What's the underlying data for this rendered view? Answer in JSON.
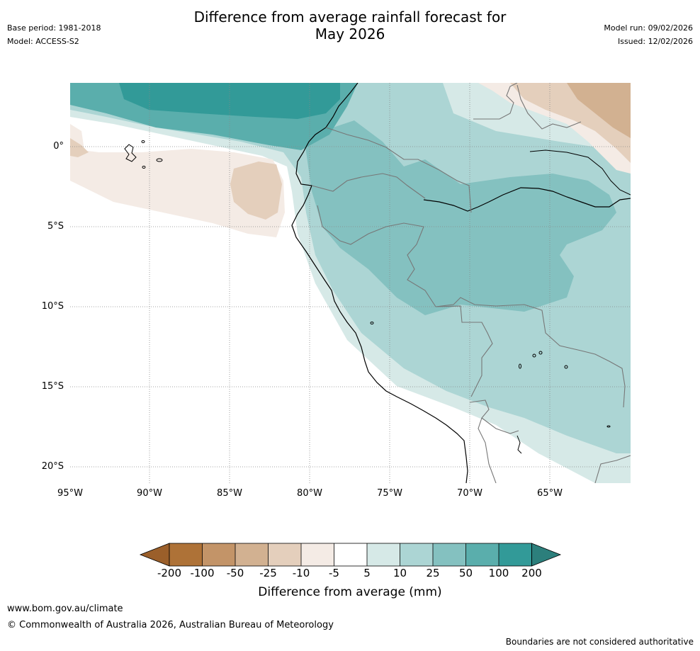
{
  "header": {
    "title_line1": "Difference from average rainfall forecast for",
    "title_line2": "May 2026",
    "base_period": "Base period: 1981-2018",
    "model": "Model: ACCESS-S2",
    "model_run": "Model run: 09/02/2026",
    "issued": "Issued: 12/02/2026"
  },
  "map": {
    "lat_labels": [
      "0°",
      "5°S",
      "10°S",
      "15°S",
      "20°S"
    ],
    "lon_labels": [
      "95°W",
      "90°W",
      "85°W",
      "80°W",
      "75°W",
      "70°W",
      "65°W"
    ]
  },
  "colorbar": {
    "labels": [
      "-200",
      "-100",
      "-50",
      "-25",
      "-10",
      "-5",
      "5",
      "10",
      "25",
      "50",
      "100",
      "200"
    ],
    "title": "Difference from average (mm)",
    "colors": {
      "below_min": "#9b5f2a",
      "b200_100": "#ae7237",
      "b100_50": "#c39468",
      "b50_25": "#d2b191",
      "b25_10": "#e4cfbc",
      "b10_5": "#f4ebe5",
      "b5_5": "#ffffff",
      "b5_10": "#d6e9e7",
      "b10_25": "#acd5d4",
      "b25_50": "#84c1c0",
      "b50_100": "#5aaeac",
      "b100_200": "#329a98",
      "above_max": "#2c7f7c"
    }
  },
  "footer": {
    "url": "www.bom.gov.au/climate",
    "copyright": "© Commonwealth of Australia 2026, Australian Bureau of Meteorology",
    "disclaimer": "Boundaries are not considered authoritative"
  }
}
